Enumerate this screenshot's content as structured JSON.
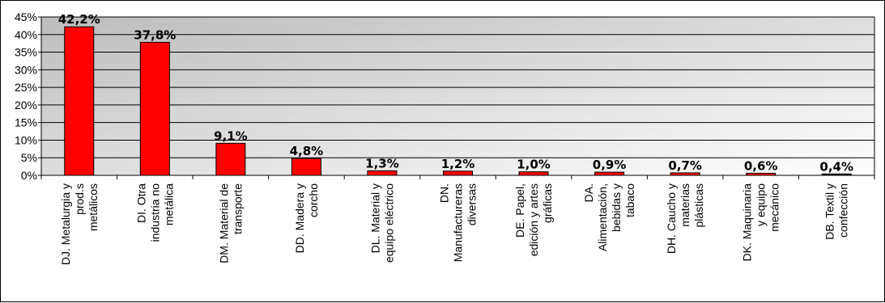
{
  "chart_data": {
    "type": "bar",
    "categories": [
      [
        "DJ. Metalurgia y",
        "prod.s",
        "metálicos"
      ],
      [
        "DI. Otra",
        "industria no",
        "metálica"
      ],
      [
        "DM. Material de",
        "transporte"
      ],
      [
        "DD. Madera y",
        "corcho"
      ],
      [
        "DL. Material y",
        "equipo eléctrico"
      ],
      [
        "DN.",
        "Manufactureras",
        "diversas"
      ],
      [
        "DE. Papel,",
        "edición y artes",
        "gráficas"
      ],
      [
        "DA.",
        "Alimentación,",
        "bebidas y",
        "tabaco"
      ],
      [
        "DH. Caucho y",
        "materias",
        "plásticas"
      ],
      [
        "DK. Maquinaria",
        "y equipo",
        "mecánico"
      ],
      [
        "DB. Textil y",
        "confección"
      ]
    ],
    "values": [
      42.2,
      37.8,
      9.1,
      4.8,
      1.3,
      1.2,
      1.0,
      0.9,
      0.7,
      0.6,
      0.4
    ],
    "data_labels": [
      "42,2%",
      "37,8%",
      "9,1%",
      "4,8%",
      "1,3%",
      "1,2%",
      "1,0%",
      "0,9%",
      "0,7%",
      "0,6%",
      "0,4%"
    ],
    "y_ticks": [
      0,
      5,
      10,
      15,
      20,
      25,
      30,
      35,
      40,
      45
    ],
    "y_tick_labels": [
      "0%",
      "5%",
      "10%",
      "15%",
      "20%",
      "25%",
      "30%",
      "35%",
      "40%",
      "45%"
    ],
    "ylim": [
      0,
      45
    ],
    "grid": true,
    "legend": "none",
    "colors": {
      "bar_fill": "#ff0000",
      "bar_stroke": "#000000",
      "last_bar_fill": "#000000",
      "plot_bg_dark": "#bcbcbc",
      "plot_bg_light": "#ffffff"
    }
  }
}
